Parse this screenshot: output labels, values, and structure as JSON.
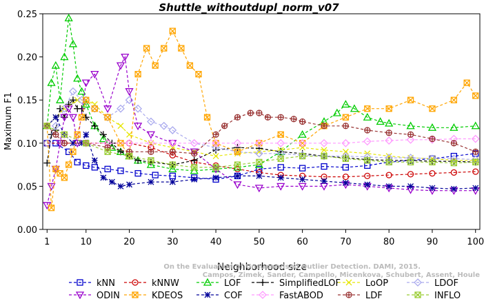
{
  "chart_data": {
    "type": "line",
    "title": "Shuttle_withoutdupl_norm_v07",
    "xlabel": "Neighborhood size",
    "ylabel": "Maximum F1",
    "xlim": [
      1,
      100
    ],
    "ylim": [
      0,
      0.25
    ],
    "xticks": [
      "1",
      "10",
      "20",
      "30",
      "40",
      "50",
      "60",
      "70",
      "80",
      "90",
      "100"
    ],
    "yticks": [
      "0.00",
      "0.05",
      "0.10",
      "0.15",
      "0.20",
      "0.25"
    ],
    "watermark": "Campos, Zimek, Sander, Campello, Micenkova, Schubert, Assent, Houle\nOn the Evaluation of Unsupervised Outlier Detection. DAMI, 2015.",
    "legend_position": "bottom",
    "series": [
      {
        "name": "kNN",
        "color": "#0000cc",
        "marker": "square",
        "x": [
          1,
          3,
          6,
          8,
          10,
          12,
          15,
          18,
          22,
          26,
          30,
          35,
          40,
          45,
          50,
          55,
          60,
          65,
          70,
          75,
          80,
          85,
          90,
          95,
          100
        ],
        "y": [
          0.1,
          0.1,
          0.09,
          0.078,
          0.074,
          0.072,
          0.07,
          0.068,
          0.065,
          0.063,
          0.062,
          0.06,
          0.058,
          0.062,
          0.07,
          0.072,
          0.071,
          0.073,
          0.072,
          0.074,
          0.078,
          0.08,
          0.082,
          0.085,
          0.088
        ]
      },
      {
        "name": "kNNW",
        "color": "#cc0000",
        "marker": "circle",
        "x": [
          1,
          5,
          10,
          15,
          20,
          25,
          30,
          35,
          40,
          45,
          50,
          55,
          60,
          65,
          70,
          75,
          80,
          85,
          90,
          95,
          100
        ],
        "y": [
          0.1,
          0.1,
          0.1,
          0.1,
          0.1,
          0.095,
          0.086,
          0.078,
          0.074,
          0.07,
          0.066,
          0.063,
          0.062,
          0.061,
          0.061,
          0.062,
          0.063,
          0.064,
          0.065,
          0.066,
          0.067
        ]
      },
      {
        "name": "LOF",
        "color": "#00cc00",
        "marker": "triangle",
        "x": [
          1,
          2,
          3,
          4,
          5,
          6,
          7,
          8,
          9,
          10,
          12,
          14,
          16,
          18,
          20,
          22,
          25,
          30,
          35,
          40,
          45,
          50,
          55,
          60,
          65,
          68,
          70,
          72,
          75,
          78,
          80,
          85,
          90,
          95,
          100
        ],
        "y": [
          0.12,
          0.17,
          0.19,
          0.15,
          0.2,
          0.245,
          0.215,
          0.175,
          0.16,
          0.145,
          0.12,
          0.105,
          0.095,
          0.09,
          0.085,
          0.08,
          0.075,
          0.07,
          0.068,
          0.07,
          0.072,
          0.075,
          0.09,
          0.11,
          0.125,
          0.135,
          0.145,
          0.14,
          0.13,
          0.125,
          0.123,
          0.12,
          0.118,
          0.118,
          0.12
        ]
      },
      {
        "name": "SimplifiedLOF",
        "color": "#000000",
        "marker": "plus",
        "x": [
          1,
          2,
          3,
          4,
          5,
          6,
          7,
          8,
          9,
          10,
          12,
          14,
          16,
          18,
          20,
          22,
          25,
          30,
          35,
          40,
          45,
          50,
          55,
          60,
          65,
          70,
          75,
          80,
          85,
          90,
          95,
          100
        ],
        "y": [
          0.077,
          0.11,
          0.115,
          0.14,
          0.13,
          0.145,
          0.15,
          0.14,
          0.14,
          0.13,
          0.12,
          0.11,
          0.1,
          0.09,
          0.085,
          0.08,
          0.078,
          0.075,
          0.08,
          0.092,
          0.095,
          0.094,
          0.09,
          0.088,
          0.085,
          0.083,
          0.081,
          0.08,
          0.08,
          0.079,
          0.079,
          0.078
        ]
      },
      {
        "name": "LoOP",
        "color": "#e6e600",
        "marker": "x",
        "x": [
          1,
          3,
          5,
          8,
          10,
          12,
          15,
          18,
          20,
          25,
          30,
          35,
          40,
          45,
          50,
          55,
          60,
          65,
          70,
          75,
          80,
          85,
          90,
          95,
          100
        ],
        "y": [
          0.12,
          0.13,
          0.14,
          0.15,
          0.15,
          0.145,
          0.13,
          0.12,
          0.11,
          0.1,
          0.095,
          0.09,
          0.085,
          0.088,
          0.09,
          0.092,
          0.095,
          0.092,
          0.09,
          0.088,
          0.085,
          0.083,
          0.082,
          0.08,
          0.08
        ]
      },
      {
        "name": "LDOF",
        "color": "#aaaaee",
        "marker": "diamond",
        "x": [
          1,
          3,
          5,
          7,
          9,
          10,
          12,
          15,
          18,
          20,
          22,
          25,
          28,
          30,
          35,
          40,
          45,
          50,
          55,
          60,
          65,
          70,
          75,
          80,
          85,
          90,
          95,
          100
        ],
        "y": [
          0.1,
          0.12,
          0.14,
          0.16,
          0.15,
          0.15,
          0.14,
          0.13,
          0.14,
          0.15,
          0.14,
          0.125,
          0.12,
          0.115,
          0.1,
          0.095,
          0.09,
          0.088,
          0.088,
          0.086,
          0.085,
          0.085,
          0.084,
          0.083,
          0.083,
          0.082,
          0.082,
          0.081
        ]
      },
      {
        "name": "ODIN",
        "color": "#9900cc",
        "marker": "triangle-down",
        "x": [
          1,
          2,
          3,
          4,
          5,
          6,
          7,
          8,
          10,
          12,
          15,
          18,
          19,
          20,
          22,
          25,
          30,
          35,
          40,
          45,
          50,
          55,
          60,
          65,
          70,
          75,
          80,
          85,
          90,
          95,
          100
        ],
        "y": [
          0.028,
          0.05,
          0.07,
          0.1,
          0.13,
          0.14,
          0.13,
          0.1,
          0.17,
          0.18,
          0.14,
          0.19,
          0.2,
          0.16,
          0.12,
          0.11,
          0.1,
          0.09,
          0.07,
          0.052,
          0.048,
          0.05,
          0.05,
          0.05,
          0.052,
          0.05,
          0.048,
          0.046,
          0.045,
          0.045,
          0.045
        ]
      },
      {
        "name": "KDEOS",
        "color": "#ffa500",
        "marker": "square-x",
        "x": [
          1,
          2,
          3,
          4,
          5,
          6,
          7,
          8,
          9,
          10,
          12,
          15,
          18,
          20,
          22,
          24,
          26,
          28,
          30,
          32,
          34,
          36,
          38,
          40,
          45,
          50,
          55,
          60,
          65,
          70,
          75,
          80,
          85,
          90,
          95,
          98,
          100
        ],
        "y": [
          0.12,
          0.025,
          0.07,
          0.065,
          0.06,
          0.075,
          0.09,
          0.11,
          0.13,
          0.15,
          0.14,
          0.13,
          0.1,
          0.085,
          0.18,
          0.21,
          0.19,
          0.21,
          0.23,
          0.21,
          0.19,
          0.18,
          0.13,
          0.1,
          0.09,
          0.1,
          0.11,
          0.1,
          0.12,
          0.13,
          0.14,
          0.14,
          0.15,
          0.14,
          0.15,
          0.17,
          0.155
        ]
      },
      {
        "name": "COF",
        "color": "#000099",
        "marker": "star",
        "x": [
          1,
          3,
          5,
          7,
          9,
          10,
          12,
          14,
          16,
          18,
          20,
          25,
          30,
          35,
          40,
          45,
          50,
          55,
          60,
          65,
          70,
          75,
          80,
          85,
          90,
          95,
          100
        ],
        "y": [
          0.12,
          0.13,
          0.11,
          0.1,
          0.1,
          0.11,
          0.08,
          0.06,
          0.055,
          0.05,
          0.052,
          0.055,
          0.055,
          0.058,
          0.06,
          0.062,
          0.062,
          0.06,
          0.058,
          0.056,
          0.054,
          0.052,
          0.05,
          0.05,
          0.048,
          0.047,
          0.048
        ]
      },
      {
        "name": "FastABOD",
        "color": "#ff99ff",
        "marker": "diamond",
        "x": [
          1,
          5,
          10,
          15,
          20,
          25,
          30,
          35,
          40,
          45,
          50,
          55,
          60,
          65,
          70,
          75,
          80,
          85,
          90,
          95,
          100
        ],
        "y": [
          0.12,
          0.11,
          0.1,
          0.1,
          0.1,
          0.1,
          0.1,
          0.1,
          0.1,
          0.1,
          0.1,
          0.1,
          0.1,
          0.1,
          0.1,
          0.102,
          0.103,
          0.104,
          0.104,
          0.105,
          0.105
        ]
      },
      {
        "name": "LDF",
        "color": "#993333",
        "marker": "circle-plus",
        "x": [
          1,
          3,
          5,
          10,
          15,
          20,
          25,
          30,
          35,
          40,
          42,
          45,
          48,
          50,
          52,
          55,
          58,
          60,
          65,
          70,
          75,
          80,
          85,
          90,
          95,
          100
        ],
        "y": [
          0.12,
          0.11,
          0.1,
          0.1,
          0.095,
          0.09,
          0.09,
          0.09,
          0.088,
          0.11,
          0.12,
          0.13,
          0.135,
          0.135,
          0.13,
          0.13,
          0.128,
          0.125,
          0.12,
          0.12,
          0.115,
          0.112,
          0.11,
          0.105,
          0.1,
          0.09
        ]
      },
      {
        "name": "INFLO",
        "color": "#99cc33",
        "marker": "square-x",
        "x": [
          1,
          5,
          10,
          15,
          20,
          25,
          30,
          35,
          40,
          45,
          50,
          55,
          60,
          65,
          70,
          75,
          80,
          85,
          90,
          95,
          100
        ],
        "y": [
          0.12,
          0.11,
          0.1,
          0.09,
          0.085,
          0.08,
          0.075,
          0.072,
          0.072,
          0.075,
          0.078,
          0.082,
          0.085,
          0.085,
          0.082,
          0.08,
          0.078,
          0.078,
          0.078,
          0.077,
          0.078
        ]
      }
    ]
  }
}
